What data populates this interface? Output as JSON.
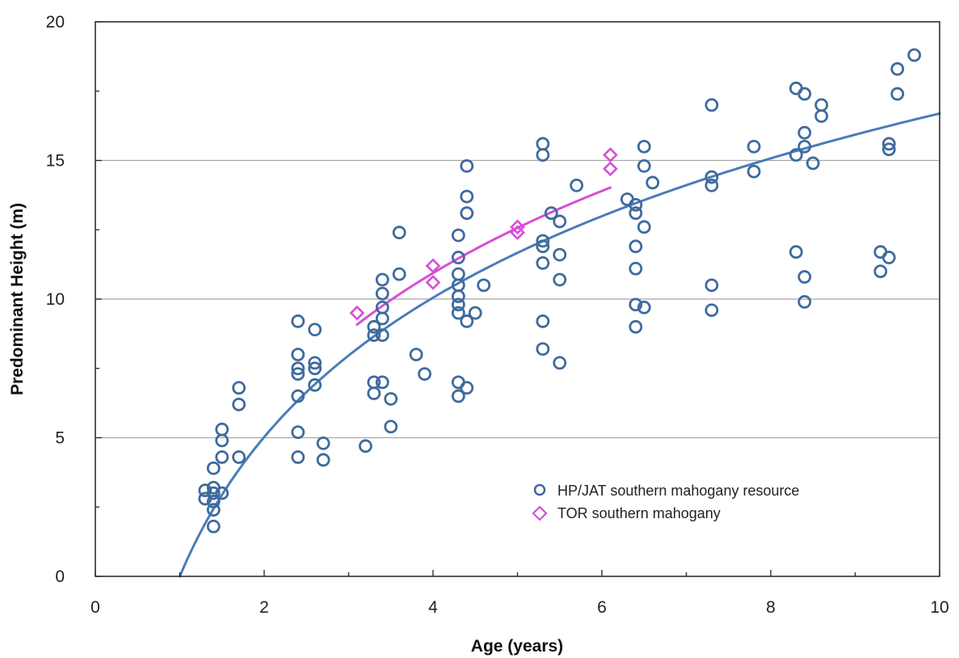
{
  "chart_data": {
    "type": "scatter",
    "xlabel": "Age (years)",
    "ylabel": "Predominant Height (m)",
    "xlim": [
      0,
      10
    ],
    "ylim": [
      0,
      20
    ],
    "x_ticks": [
      0,
      2,
      4,
      6,
      8,
      10
    ],
    "y_ticks": [
      0,
      5,
      10,
      15,
      20
    ],
    "grid": "horizontal",
    "legend_position": "bottom-right",
    "series": [
      {
        "name": "HP/JAT southern mahogany resource",
        "marker": "circle",
        "color": "#3f6a9c",
        "points": [
          [
            1.3,
            3.1
          ],
          [
            1.3,
            2.8
          ],
          [
            1.4,
            3.2
          ],
          [
            1.4,
            3.0
          ],
          [
            1.4,
            2.7
          ],
          [
            1.4,
            2.4
          ],
          [
            1.4,
            1.8
          ],
          [
            1.4,
            3.9
          ],
          [
            1.5,
            5.3
          ],
          [
            1.5,
            4.9
          ],
          [
            1.5,
            4.3
          ],
          [
            1.5,
            3.0
          ],
          [
            1.7,
            6.8
          ],
          [
            1.7,
            6.2
          ],
          [
            1.7,
            4.3
          ],
          [
            2.4,
            9.2
          ],
          [
            2.4,
            8.0
          ],
          [
            2.4,
            7.5
          ],
          [
            2.4,
            7.3
          ],
          [
            2.4,
            6.5
          ],
          [
            2.4,
            5.2
          ],
          [
            2.4,
            4.3
          ],
          [
            2.6,
            8.9
          ],
          [
            2.6,
            7.7
          ],
          [
            2.6,
            7.5
          ],
          [
            2.6,
            6.9
          ],
          [
            2.7,
            4.8
          ],
          [
            2.7,
            4.2
          ],
          [
            3.2,
            4.7
          ],
          [
            3.3,
            9.0
          ],
          [
            3.3,
            8.7
          ],
          [
            3.3,
            7.0
          ],
          [
            3.3,
            6.6
          ],
          [
            3.4,
            10.7
          ],
          [
            3.4,
            10.2
          ],
          [
            3.4,
            9.7
          ],
          [
            3.4,
            9.3
          ],
          [
            3.4,
            8.7
          ],
          [
            3.4,
            7.0
          ],
          [
            3.5,
            6.4
          ],
          [
            3.5,
            5.4
          ],
          [
            3.6,
            12.4
          ],
          [
            3.6,
            10.9
          ],
          [
            3.8,
            8.0
          ],
          [
            3.9,
            7.3
          ],
          [
            4.3,
            12.3
          ],
          [
            4.3,
            11.5
          ],
          [
            4.3,
            10.9
          ],
          [
            4.3,
            10.5
          ],
          [
            4.3,
            10.1
          ],
          [
            4.3,
            9.8
          ],
          [
            4.3,
            9.5
          ],
          [
            4.3,
            7.0
          ],
          [
            4.3,
            6.5
          ],
          [
            4.4,
            14.8
          ],
          [
            4.4,
            13.7
          ],
          [
            4.4,
            13.1
          ],
          [
            4.4,
            9.2
          ],
          [
            4.4,
            6.8
          ],
          [
            4.5,
            9.5
          ],
          [
            4.6,
            10.5
          ],
          [
            5.3,
            15.6
          ],
          [
            5.3,
            15.2
          ],
          [
            5.3,
            12.1
          ],
          [
            5.3,
            11.9
          ],
          [
            5.3,
            11.3
          ],
          [
            5.3,
            9.2
          ],
          [
            5.3,
            8.2
          ],
          [
            5.4,
            13.1
          ],
          [
            5.5,
            12.8
          ],
          [
            5.5,
            11.6
          ],
          [
            5.5,
            10.7
          ],
          [
            5.5,
            7.7
          ],
          [
            5.7,
            14.1
          ],
          [
            6.3,
            13.6
          ],
          [
            6.4,
            13.4
          ],
          [
            6.4,
            13.1
          ],
          [
            6.4,
            11.9
          ],
          [
            6.4,
            11.1
          ],
          [
            6.4,
            9.8
          ],
          [
            6.4,
            9.0
          ],
          [
            6.5,
            15.5
          ],
          [
            6.5,
            14.8
          ],
          [
            6.5,
            12.6
          ],
          [
            6.5,
            9.7
          ],
          [
            6.6,
            14.2
          ],
          [
            7.3,
            17.0
          ],
          [
            7.3,
            14.4
          ],
          [
            7.3,
            14.1
          ],
          [
            7.3,
            10.5
          ],
          [
            7.3,
            9.6
          ],
          [
            7.8,
            15.5
          ],
          [
            7.8,
            14.6
          ],
          [
            8.3,
            17.6
          ],
          [
            8.3,
            15.2
          ],
          [
            8.3,
            11.7
          ],
          [
            8.4,
            17.4
          ],
          [
            8.4,
            16.0
          ],
          [
            8.4,
            15.5
          ],
          [
            8.4,
            10.8
          ],
          [
            8.4,
            9.9
          ],
          [
            8.5,
            14.9
          ],
          [
            8.6,
            17.0
          ],
          [
            8.6,
            16.6
          ],
          [
            9.3,
            11.7
          ],
          [
            9.3,
            11.0
          ],
          [
            9.4,
            15.6
          ],
          [
            9.4,
            15.4
          ],
          [
            9.4,
            11.5
          ],
          [
            9.5,
            18.3
          ],
          [
            9.5,
            17.4
          ],
          [
            9.7,
            18.8
          ]
        ]
      },
      {
        "name": "TOR southern mahogany",
        "marker": "diamond",
        "color": "#d64fd6",
        "points": [
          [
            3.1,
            9.5
          ],
          [
            4.0,
            11.2
          ],
          [
            4.0,
            10.6
          ],
          [
            5.0,
            12.6
          ],
          [
            5.0,
            12.4
          ],
          [
            6.1,
            15.2
          ],
          [
            6.1,
            14.7
          ]
        ]
      }
    ],
    "trend_lines": [
      {
        "series": "HP/JAT southern mahogany resource",
        "color": "#4a7cb8",
        "x_range": [
          1.0,
          10.0
        ],
        "a": 0,
        "b": 7.25
      },
      {
        "series": "TOR southern mahogany",
        "color": "#d64fd6",
        "x_range": [
          3.1,
          6.1
        ],
        "a": 0.82,
        "b": 7.3
      }
    ]
  }
}
